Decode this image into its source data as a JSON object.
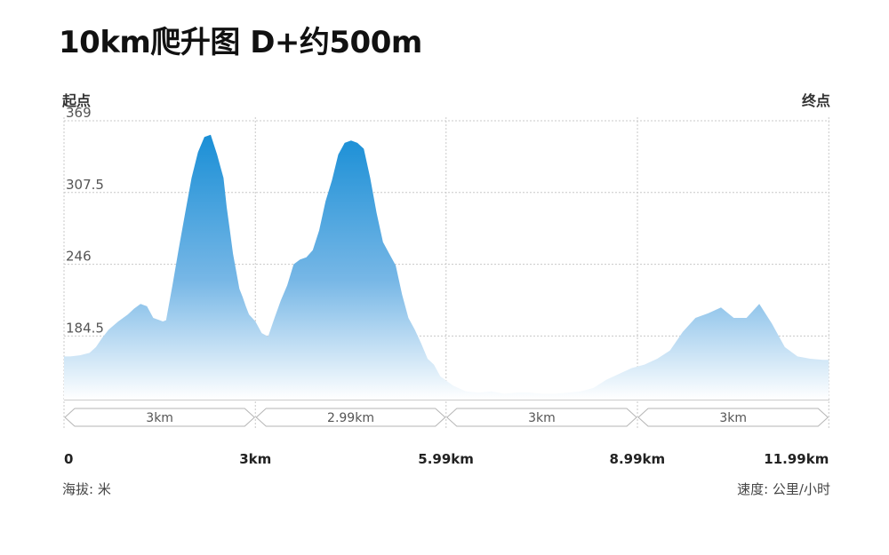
{
  "title": "10km爬升图  D+约500m",
  "labels": {
    "start": "起点",
    "end": "终点",
    "y_unit": "海拔: 米",
    "speed_unit": "速度: 公里/小时"
  },
  "colors": {
    "area_top": "#1a8fd6",
    "area_bottom": "#ffffff",
    "grid": "#c8c8c8"
  },
  "chart_data": {
    "type": "area",
    "title": "10km爬升图  D+约500m",
    "xlabel": "",
    "ylabel": "海拔: 米",
    "xlim": [
      0,
      12
    ],
    "ylim": [
      130,
      372
    ],
    "grid": true,
    "x_unit": "km",
    "y_unit": "m",
    "yticks": [
      184.5,
      246,
      307.5,
      369
    ],
    "ytick_labels": [
      "184.5",
      "246",
      "307.5",
      "369"
    ],
    "xticks": [
      0,
      3,
      5.99,
      8.99,
      11.99
    ],
    "xtick_labels": [
      "0",
      "3km",
      "5.99km",
      "8.99km",
      "11.99km"
    ],
    "segments": [
      {
        "from": 0,
        "to": 3,
        "label": "3km"
      },
      {
        "from": 3,
        "to": 5.99,
        "label": "2.99km"
      },
      {
        "from": 5.99,
        "to": 8.99,
        "label": "3km"
      },
      {
        "from": 8.99,
        "to": 11.99,
        "label": "3km"
      }
    ],
    "series": [
      {
        "x": [
          0,
          0.1,
          0.25,
          0.4,
          0.5,
          0.6,
          0.7,
          0.85,
          1.0,
          1.1,
          1.2,
          1.3,
          1.4,
          1.5,
          1.55,
          1.6,
          1.7,
          1.8,
          1.9,
          2.0,
          2.1,
          2.2,
          2.3,
          2.4,
          2.45,
          2.5,
          2.55,
          2.6,
          2.65,
          2.7,
          2.75,
          2.8,
          2.85,
          2.9,
          3.0,
          3.1,
          3.2,
          3.3,
          3.4,
          3.5,
          3.6,
          3.7,
          3.8,
          3.9,
          4.0,
          4.1,
          4.2,
          4.3,
          4.4,
          4.5,
          4.6,
          4.7,
          4.8,
          4.9,
          5.0,
          5.1,
          5.2,
          5.3,
          5.4,
          5.5,
          5.6,
          5.7,
          5.8,
          5.9,
          6.1,
          6.3,
          6.5,
          6.7,
          6.9,
          7.1,
          7.3,
          7.5,
          7.7,
          7.9,
          8.1,
          8.3,
          8.5,
          8.7,
          8.9,
          9.1,
          9.3,
          9.5,
          9.7,
          9.9,
          10.1,
          10.3,
          10.5,
          10.7,
          10.9,
          11.1,
          11.3,
          11.5,
          11.7,
          11.9,
          11.99
        ],
        "y": [
          167,
          167,
          168,
          170,
          175,
          183,
          190,
          197,
          203,
          208,
          212,
          210,
          200,
          198,
          197,
          198,
          228,
          260,
          290,
          320,
          342,
          355,
          357,
          340,
          330,
          320,
          295,
          275,
          255,
          240,
          225,
          218,
          210,
          203,
          197,
          187,
          184,
          200,
          215,
          228,
          246,
          250,
          252,
          258,
          275,
          300,
          318,
          340,
          350,
          352,
          350,
          345,
          320,
          290,
          265,
          255,
          245,
          220,
          200,
          190,
          178,
          165,
          160,
          150,
          142,
          137,
          136,
          137,
          135,
          136,
          136,
          135,
          135,
          136,
          137,
          140,
          147,
          152,
          157,
          160,
          165,
          172,
          188,
          200,
          204,
          209,
          200,
          200,
          212,
          195,
          175,
          167,
          165,
          164,
          164
        ]
      }
    ]
  }
}
